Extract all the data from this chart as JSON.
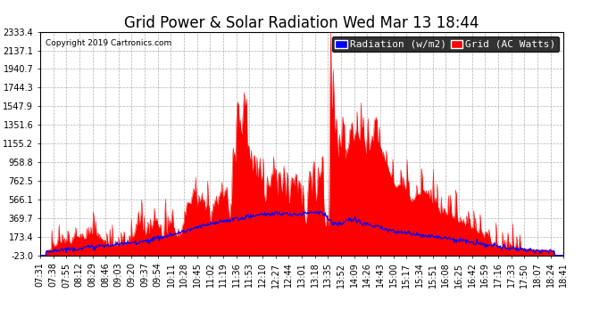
{
  "title": "Grid Power & Solar Radiation Wed Mar 13 18:44",
  "copyright": "Copyright 2019 Cartronics.com",
  "legend_radiation": "Radiation (w/m2)",
  "legend_grid": "Grid (AC Watts)",
  "radiation_color": "#0000ff",
  "grid_color": "#ff0000",
  "bg_color": "#ffffff",
  "plot_bg_color": "#ffffff",
  "grid_line_color": "#b0b0b0",
  "ylim": [
    -23.0,
    2333.4
  ],
  "yticks": [
    -23.0,
    173.4,
    369.7,
    566.1,
    762.5,
    958.8,
    1155.2,
    1351.6,
    1547.9,
    1744.3,
    1940.7,
    2137.1,
    2333.4
  ],
  "title_fontsize": 12,
  "tick_fontsize": 7,
  "legend_fontsize": 8,
  "time_labels": [
    "07:31",
    "07:38",
    "07:55",
    "08:12",
    "08:29",
    "08:46",
    "09:03",
    "09:20",
    "09:37",
    "09:54",
    "10:11",
    "10:28",
    "10:45",
    "11:02",
    "11:19",
    "11:36",
    "11:53",
    "12:10",
    "12:27",
    "12:44",
    "13:01",
    "13:18",
    "13:35",
    "13:52",
    "14:09",
    "14:26",
    "14:43",
    "15:00",
    "15:17",
    "15:34",
    "15:51",
    "16:08",
    "16:25",
    "16:42",
    "16:59",
    "17:16",
    "17:33",
    "17:50",
    "18:07",
    "18:24",
    "18:41"
  ]
}
